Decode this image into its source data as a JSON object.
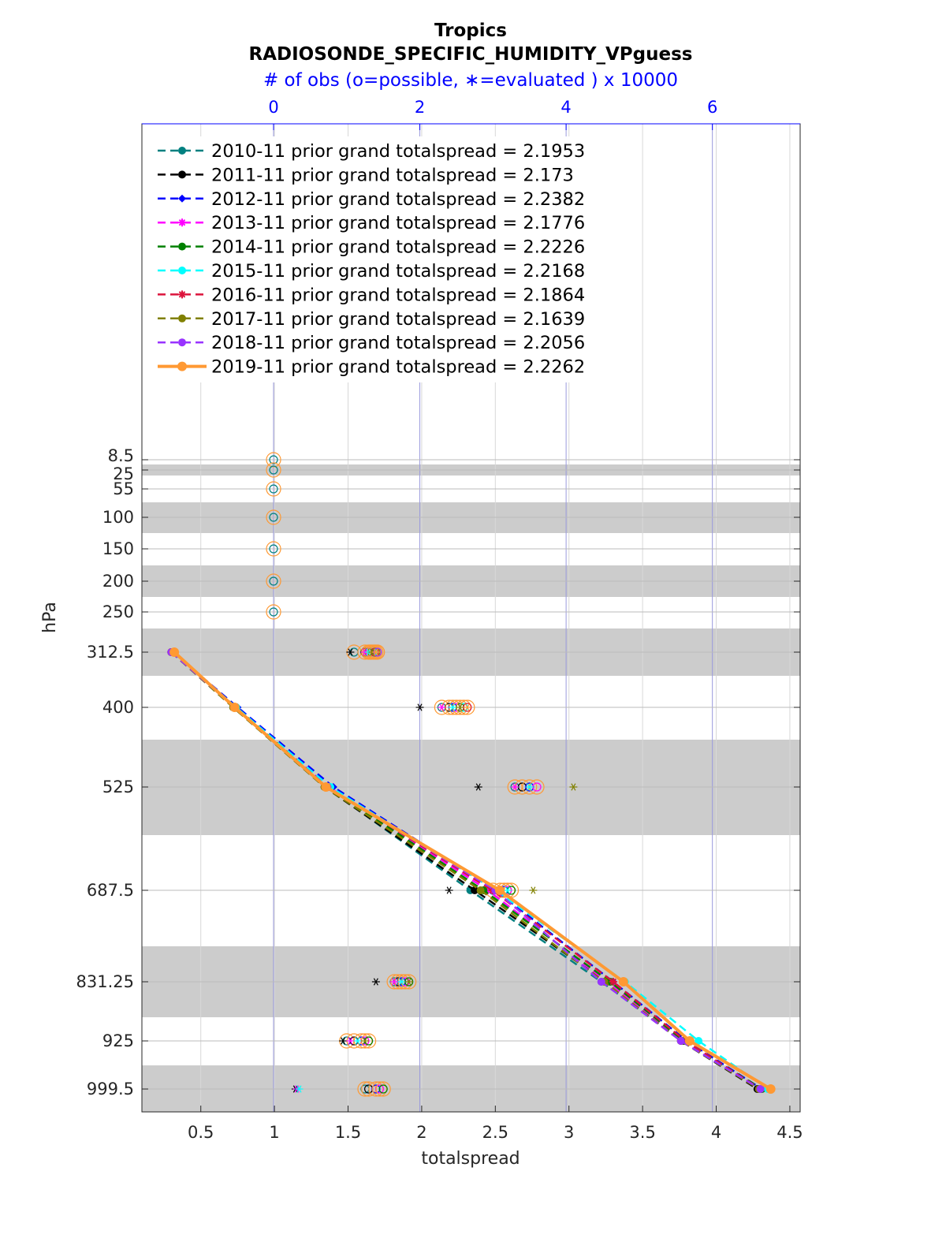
{
  "chart_data": {
    "type": "line",
    "title": "Tropics",
    "subtitle": "RADIOSONDE_SPECIFIC_HUMIDITY_VPguess",
    "top_axis_label": "# of obs (o=possible, ∗=evaluated ) x 10000",
    "xlabel": "totalspread",
    "ylabel": "hPa",
    "xlim": [
      0.1,
      4.57
    ],
    "xticks": [
      "0.5",
      "1",
      "1.5",
      "2",
      "2.5",
      "3",
      "3.5",
      "4",
      "4.5"
    ],
    "top_xlim": [
      -1.8,
      7.2
    ],
    "top_xticks": [
      "0",
      "2",
      "4",
      "6"
    ],
    "yticks": [
      "8.5",
      "25",
      "55",
      "100",
      "150",
      "200",
      "250",
      "312.5",
      "400",
      "525",
      "687.5",
      "831.25",
      "925",
      "999.5"
    ],
    "levels": [
      312.5,
      400,
      525,
      687.5,
      831.25,
      925,
      999.5
    ],
    "grid": true,
    "legend_position": "top-left",
    "series": [
      {
        "name": "2010-11 prior grand totalspread = 2.1953",
        "color": "#008080",
        "dash": "10,6",
        "marker": "circle",
        "values": [
          0.3,
          0.73,
          1.35,
          2.33,
          3.22,
          3.77,
          4.3
        ]
      },
      {
        "name": "2011-11 prior grand totalspread = 2.173",
        "color": "#000000",
        "dash": "10,6",
        "marker": "circle",
        "values": [
          0.3,
          0.72,
          1.34,
          2.36,
          3.25,
          3.76,
          4.28
        ]
      },
      {
        "name": "2012-11 prior grand totalspread = 2.2382",
        "color": "#0000ff",
        "dash": "10,6",
        "marker": "diamond",
        "values": [
          0.31,
          0.75,
          1.4,
          2.5,
          3.3,
          3.8,
          4.31
        ]
      },
      {
        "name": "2013-11 prior grand totalspread = 2.1776",
        "color": "#ff00ff",
        "dash": "10,6",
        "marker": "star",
        "values": [
          0.3,
          0.73,
          1.37,
          2.45,
          3.26,
          3.77,
          4.3
        ]
      },
      {
        "name": "2014-11 prior grand totalspread = 2.2226",
        "color": "#008000",
        "dash": "10,6",
        "marker": "circle",
        "values": [
          0.3,
          0.74,
          1.36,
          2.42,
          3.28,
          3.78,
          4.31
        ]
      },
      {
        "name": "2015-11 prior grand totalspread = 2.2168",
        "color": "#00ffff",
        "dash": "10,6",
        "marker": "circle",
        "values": [
          0.31,
          0.74,
          1.38,
          2.5,
          3.38,
          3.88,
          4.35
        ]
      },
      {
        "name": "2016-11 prior grand totalspread = 2.1864",
        "color": "#dc143c",
        "dash": "10,6",
        "marker": "star",
        "values": [
          0.3,
          0.73,
          1.36,
          2.48,
          3.3,
          3.79,
          4.3
        ]
      },
      {
        "name": "2017-11 prior grand totalspread = 2.1639",
        "color": "#808000",
        "dash": "10,6",
        "marker": "circle",
        "values": [
          0.3,
          0.72,
          1.34,
          2.4,
          3.24,
          3.76,
          4.29
        ]
      },
      {
        "name": "2018-11 prior grand totalspread = 2.2056",
        "color": "#9933ff",
        "dash": "10,6",
        "marker": "circle",
        "values": [
          0.3,
          0.73,
          1.36,
          2.5,
          3.22,
          3.76,
          4.3
        ]
      },
      {
        "name": "2019-11 prior grand totalspread = 2.2262",
        "color": "#ff9933",
        "dash": "",
        "marker": "circle",
        "values": [
          0.32,
          0.73,
          1.35,
          2.53,
          3.37,
          3.82,
          4.37
        ]
      }
    ],
    "obs_counts_possible": [
      {
        "level": 8.5,
        "values": [
          0
        ]
      },
      {
        "level": 25,
        "values": [
          0
        ]
      },
      {
        "level": 55,
        "values": [
          0
        ]
      },
      {
        "level": 100,
        "values": [
          0
        ]
      },
      {
        "level": 150,
        "values": [
          0
        ]
      },
      {
        "level": 200,
        "values": [
          0
        ]
      },
      {
        "level": 250,
        "values": [
          0
        ]
      },
      {
        "level": 312.5,
        "values": [
          1.1,
          1.25,
          1.3,
          1.32,
          1.34,
          1.36,
          1.38,
          1.4,
          1.42
        ]
      },
      {
        "level": 400,
        "values": [
          2.3,
          2.4,
          2.45,
          2.5,
          2.55,
          2.6,
          2.65
        ]
      },
      {
        "level": 525,
        "values": [
          3.3,
          3.4,
          3.5,
          3.6
        ]
      },
      {
        "level": 687.5,
        "values": [
          3.0,
          3.1,
          3.15,
          3.2,
          3.25
        ]
      },
      {
        "level": 831.25,
        "values": [
          1.65,
          1.7,
          1.75,
          1.8,
          1.85
        ]
      },
      {
        "level": 925,
        "values": [
          1.0,
          1.1,
          1.2,
          1.25,
          1.3
        ]
      },
      {
        "level": 999.5,
        "values": [
          1.25,
          1.3,
          1.4,
          1.45,
          1.5
        ]
      }
    ],
    "obs_counts_evaluated": [
      {
        "level": 312.5,
        "values": [
          1.05,
          1.25,
          1.3,
          1.35,
          1.4
        ]
      },
      {
        "level": 400,
        "values": [
          2.0,
          2.3,
          2.45,
          2.55,
          2.65
        ]
      },
      {
        "level": 525,
        "values": [
          2.8,
          3.3,
          3.5,
          4.1
        ]
      },
      {
        "level": 687.5,
        "values": [
          2.4,
          3.0,
          3.2,
          3.55
        ]
      },
      {
        "level": 831.25,
        "values": [
          1.4,
          1.65,
          1.75,
          1.85
        ]
      },
      {
        "level": 925,
        "values": [
          0.95,
          1.05,
          1.15,
          1.25
        ]
      },
      {
        "level": 999.5,
        "values": [
          0.3,
          0.32,
          0.35
        ]
      }
    ]
  }
}
